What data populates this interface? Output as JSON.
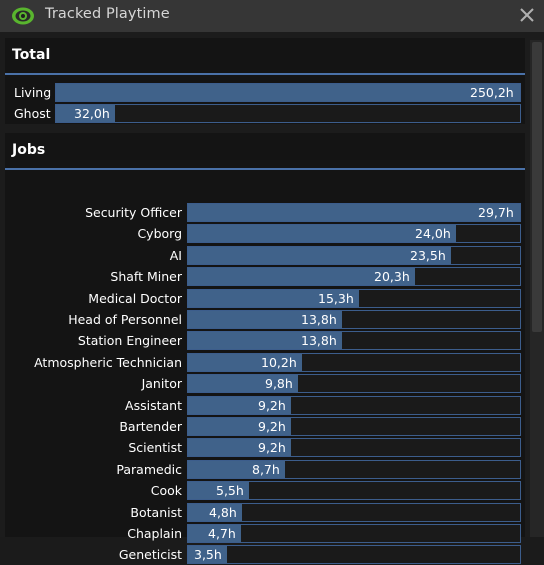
{
  "window": {
    "title": "Tracked Playtime",
    "close_icon": "close-icon",
    "eye_icon": "eye-icon",
    "accent": "#4a71a8",
    "bar_color": "#40628a"
  },
  "total": {
    "title": "Total",
    "max": 250.2,
    "rows": [
      {
        "label": "Living",
        "value": 250.2,
        "text": "250,2h"
      },
      {
        "label": "Ghost",
        "value": 32.0,
        "text": "32,0h"
      }
    ]
  },
  "jobs": {
    "title": "Jobs",
    "max": 29.7,
    "rows": [
      {
        "label": "Security Officer",
        "value": 29.7,
        "text": "29,7h"
      },
      {
        "label": "Cyborg",
        "value": 24.0,
        "text": "24,0h"
      },
      {
        "label": "AI",
        "value": 23.5,
        "text": "23,5h"
      },
      {
        "label": "Shaft Miner",
        "value": 20.3,
        "text": "20,3h"
      },
      {
        "label": "Medical Doctor",
        "value": 15.3,
        "text": "15,3h"
      },
      {
        "label": "Head of Personnel",
        "value": 13.8,
        "text": "13,8h"
      },
      {
        "label": "Station Engineer",
        "value": 13.8,
        "text": "13,8h"
      },
      {
        "label": "Atmospheric Technician",
        "value": 10.2,
        "text": "10,2h"
      },
      {
        "label": "Janitor",
        "value": 9.8,
        "text": "9,8h"
      },
      {
        "label": "Assistant",
        "value": 9.2,
        "text": "9,2h"
      },
      {
        "label": "Bartender",
        "value": 9.2,
        "text": "9,2h"
      },
      {
        "label": "Scientist",
        "value": 9.2,
        "text": "9,2h"
      },
      {
        "label": "Paramedic",
        "value": 8.7,
        "text": "8,7h"
      },
      {
        "label": "Cook",
        "value": 5.5,
        "text": "5,5h"
      },
      {
        "label": "Botanist",
        "value": 4.8,
        "text": "4,8h"
      },
      {
        "label": "Chaplain",
        "value": 4.7,
        "text": "4,7h"
      },
      {
        "label": "Geneticist",
        "value": 3.5,
        "text": "3,5h"
      }
    ]
  }
}
